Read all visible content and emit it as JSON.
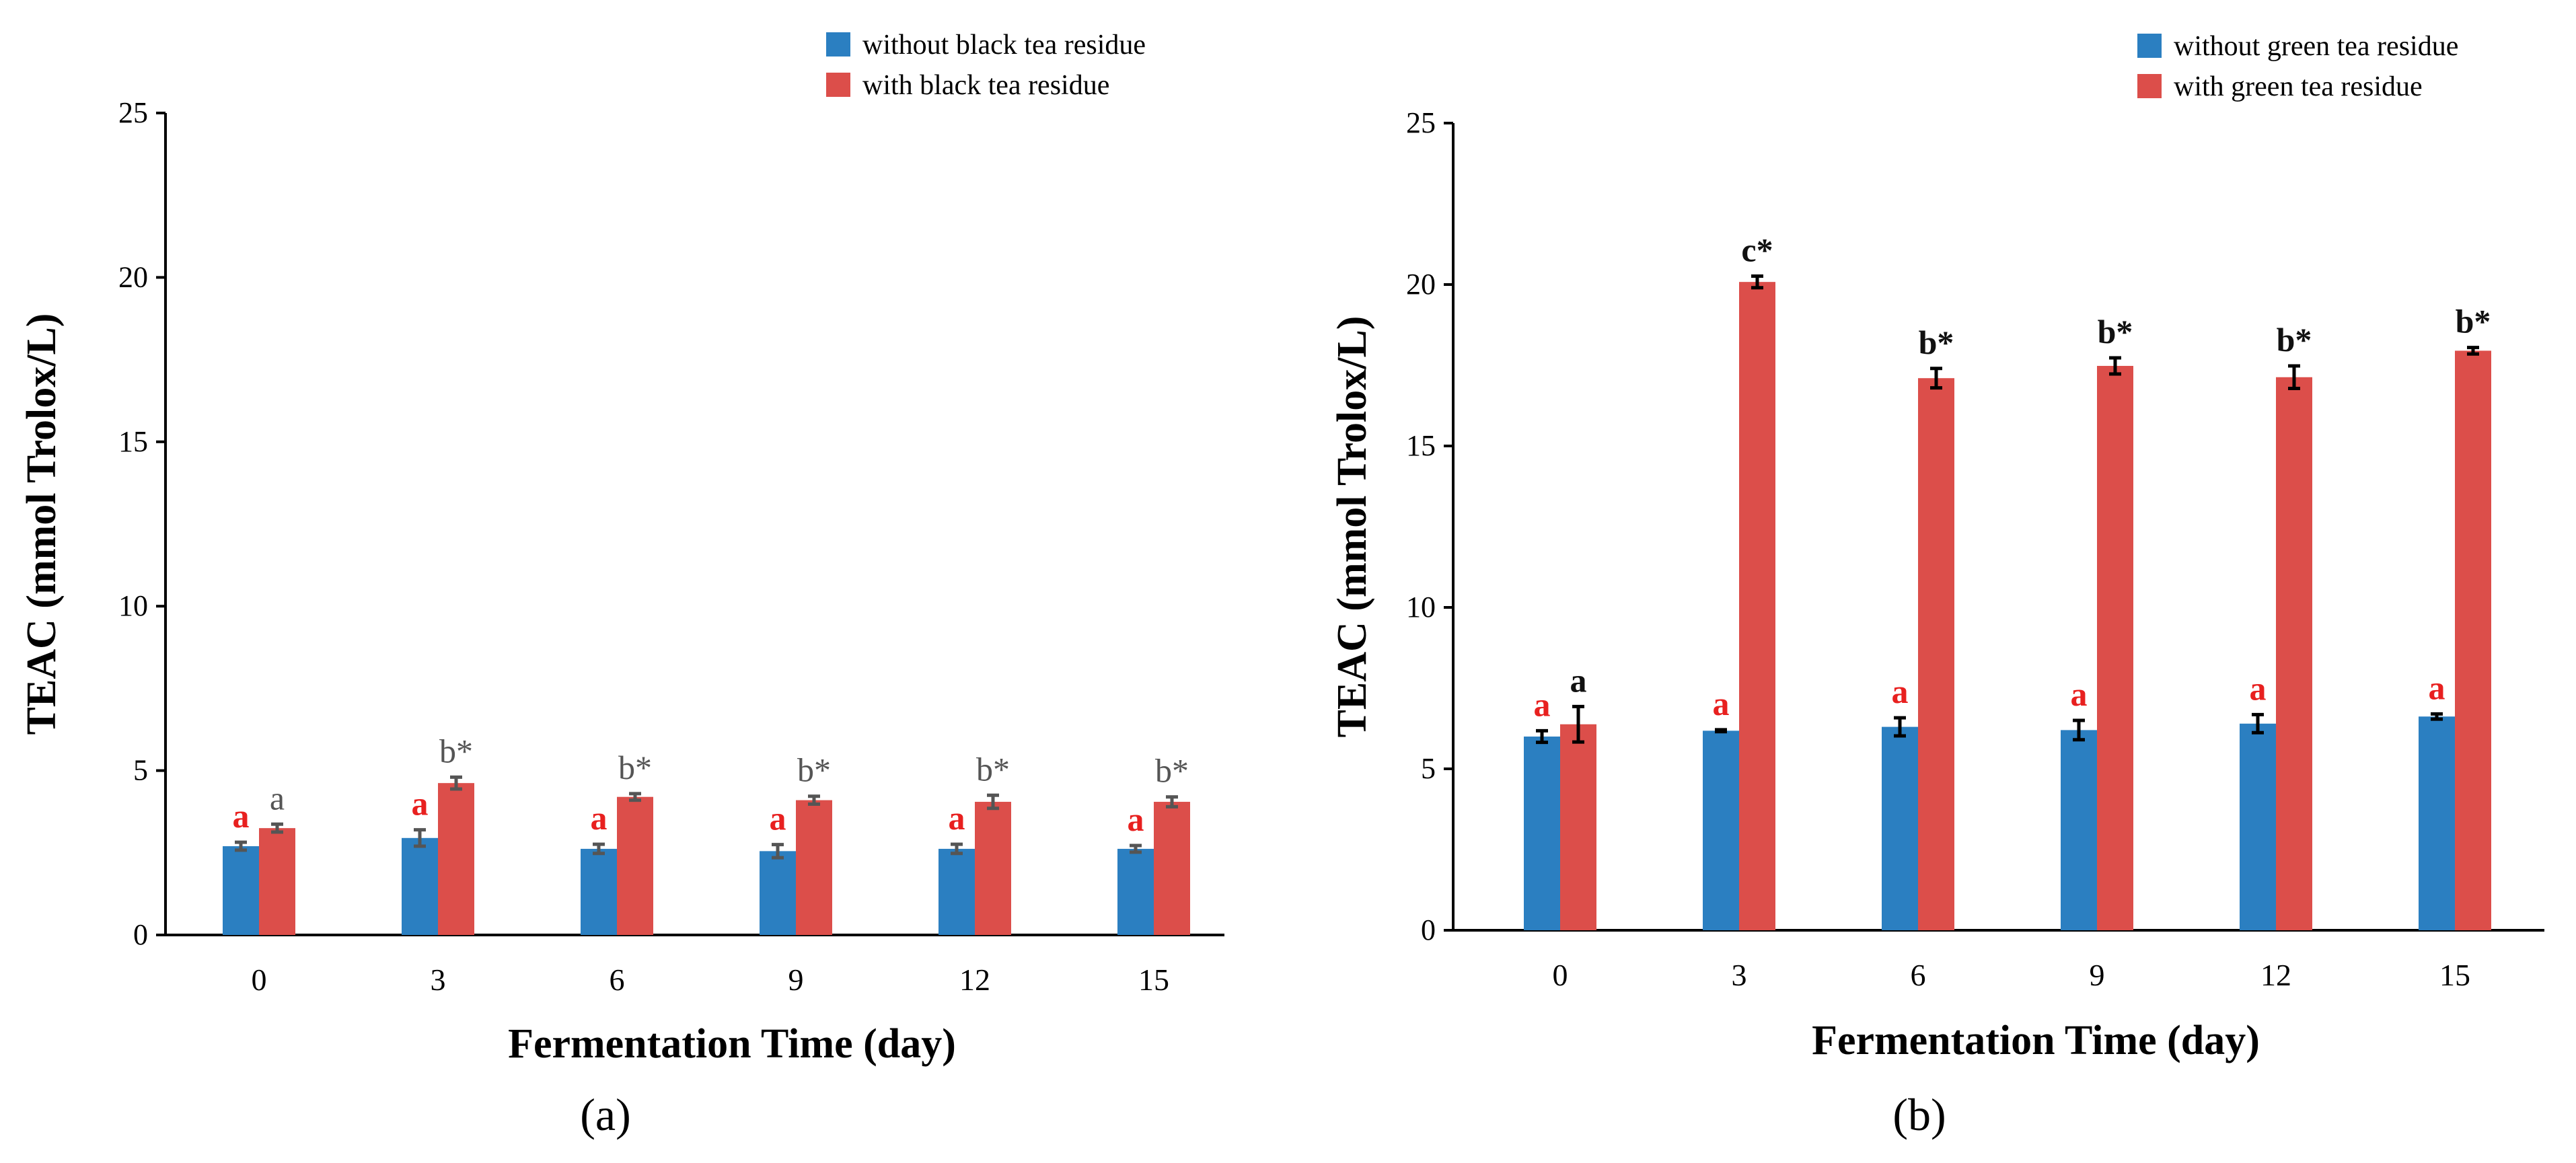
{
  "chart_data": [
    {
      "type": "bar",
      "panel_label": "(a)",
      "categories": [
        "0",
        "3",
        "6",
        "9",
        "12",
        "15"
      ],
      "xlabel": "Fermentation Time (day)",
      "ylabel": "TEAC (mmol Trolox/L)",
      "ylim": [
        0,
        25
      ],
      "yticks": [
        "0",
        "5",
        "10",
        "15",
        "20",
        "25"
      ],
      "legend_position": "top-right",
      "series": [
        {
          "name": "without black tea residue",
          "color": "#2b7fc1",
          "values": [
            2.7,
            2.95,
            2.62,
            2.55,
            2.62,
            2.62
          ],
          "errors": [
            0.12,
            0.25,
            0.14,
            0.2,
            0.14,
            0.1
          ],
          "labels": [
            "a",
            "a",
            "a",
            "a",
            "a",
            "a"
          ],
          "label_color": "#e8201f"
        },
        {
          "name": "with black tea residue",
          "color": "#dc4e4a",
          "values": [
            3.25,
            4.62,
            4.2,
            4.1,
            4.05,
            4.05
          ],
          "errors": [
            0.12,
            0.18,
            0.1,
            0.12,
            0.2,
            0.15
          ],
          "labels": [
            "a",
            "b*",
            "b*",
            "b*",
            "b*",
            "b*"
          ],
          "label_color": "#555555"
        }
      ]
    },
    {
      "type": "bar",
      "panel_label": "(b)",
      "categories": [
        "0",
        "3",
        "6",
        "9",
        "12",
        "15"
      ],
      "xlabel": "Fermentation Time (day)",
      "ylabel": "TEAC (mmol Trolox/L)",
      "ylim": [
        0,
        25
      ],
      "yticks": [
        "0",
        "5",
        "10",
        "15",
        "20",
        "25"
      ],
      "legend_position": "top-right",
      "series": [
        {
          "name": "without green tea residue",
          "color": "#2b7fc1",
          "values": [
            6.0,
            6.18,
            6.3,
            6.2,
            6.4,
            6.62
          ],
          "errors": [
            0.18,
            0.03,
            0.28,
            0.3,
            0.28,
            0.08
          ],
          "labels": [
            "a",
            "a",
            "a",
            "a",
            "a",
            "a"
          ],
          "label_color": "#e8201f"
        },
        {
          "name": "with green tea residue",
          "color": "#dc4e4a",
          "values": [
            6.38,
            20.08,
            17.1,
            17.48,
            17.13,
            17.95
          ],
          "errors": [
            0.55,
            0.18,
            0.3,
            0.25,
            0.35,
            0.1
          ],
          "labels": [
            "a",
            "c*",
            "b*",
            "b*",
            "b*",
            "b*"
          ],
          "label_color": "#111111"
        }
      ]
    }
  ]
}
